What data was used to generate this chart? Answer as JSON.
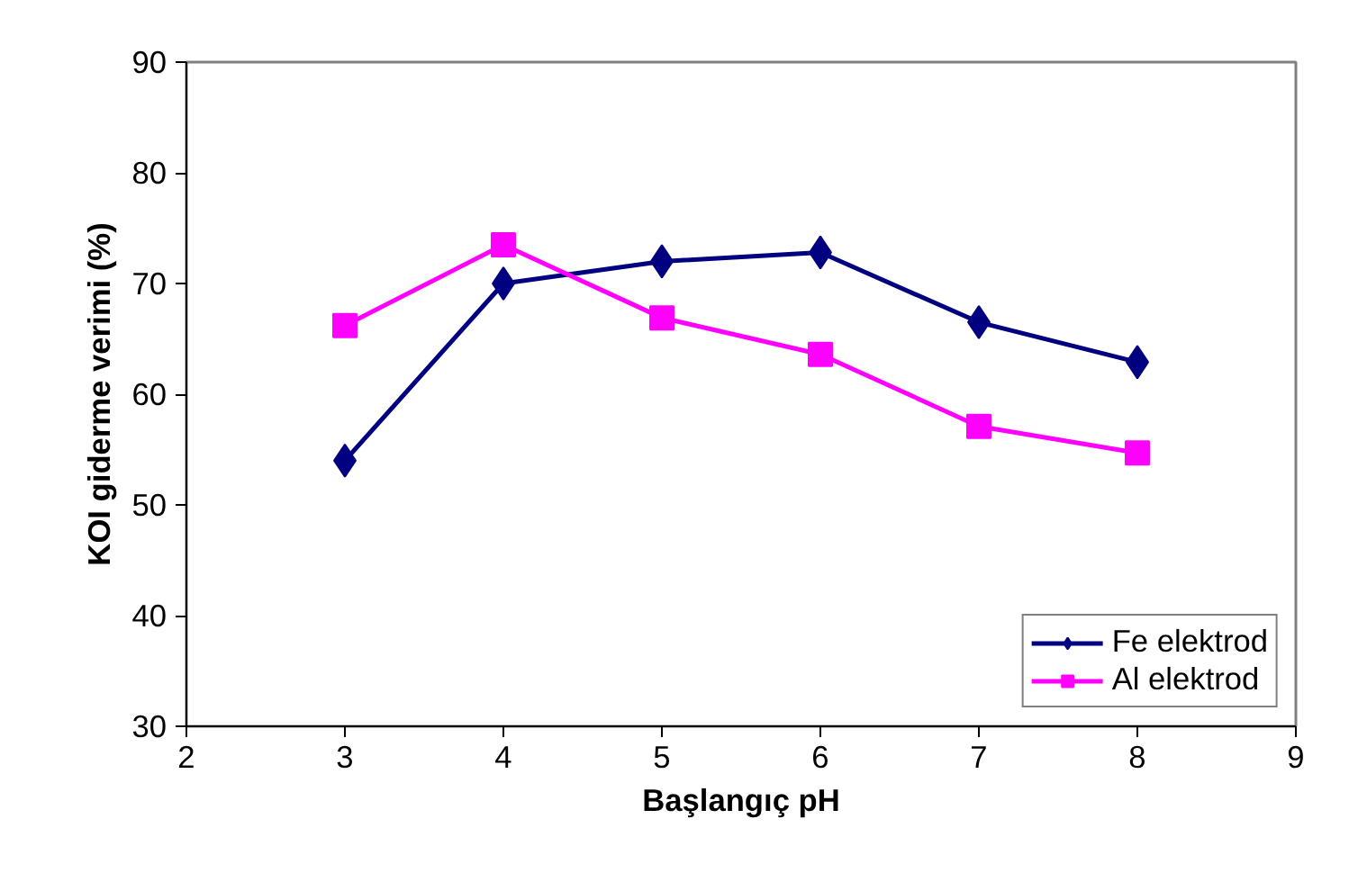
{
  "chart_data": {
    "type": "line",
    "xlabel": "Başlangıç pH",
    "ylabel": "KOI giderme verimi (%)",
    "x": [
      3,
      4,
      5,
      6,
      7,
      8
    ],
    "series": [
      {
        "name": "Fe elektrod",
        "color": "#000080",
        "marker": "diamond",
        "values": [
          54,
          70,
          72,
          72.8,
          66.5,
          62.9
        ]
      },
      {
        "name": "Al elektrod",
        "color": "#ff00ff",
        "marker": "square",
        "values": [
          66.2,
          73.5,
          66.9,
          63.6,
          57.1,
          54.7
        ]
      }
    ],
    "xlim": [
      2,
      9
    ],
    "xticks": [
      2,
      3,
      4,
      5,
      6,
      7,
      8,
      9
    ],
    "ylim": [
      30,
      90
    ],
    "yticks": [
      30,
      40,
      50,
      60,
      70,
      80,
      90
    ],
    "grid": false,
    "legend": "bottom right",
    "line_style": "solid"
  }
}
